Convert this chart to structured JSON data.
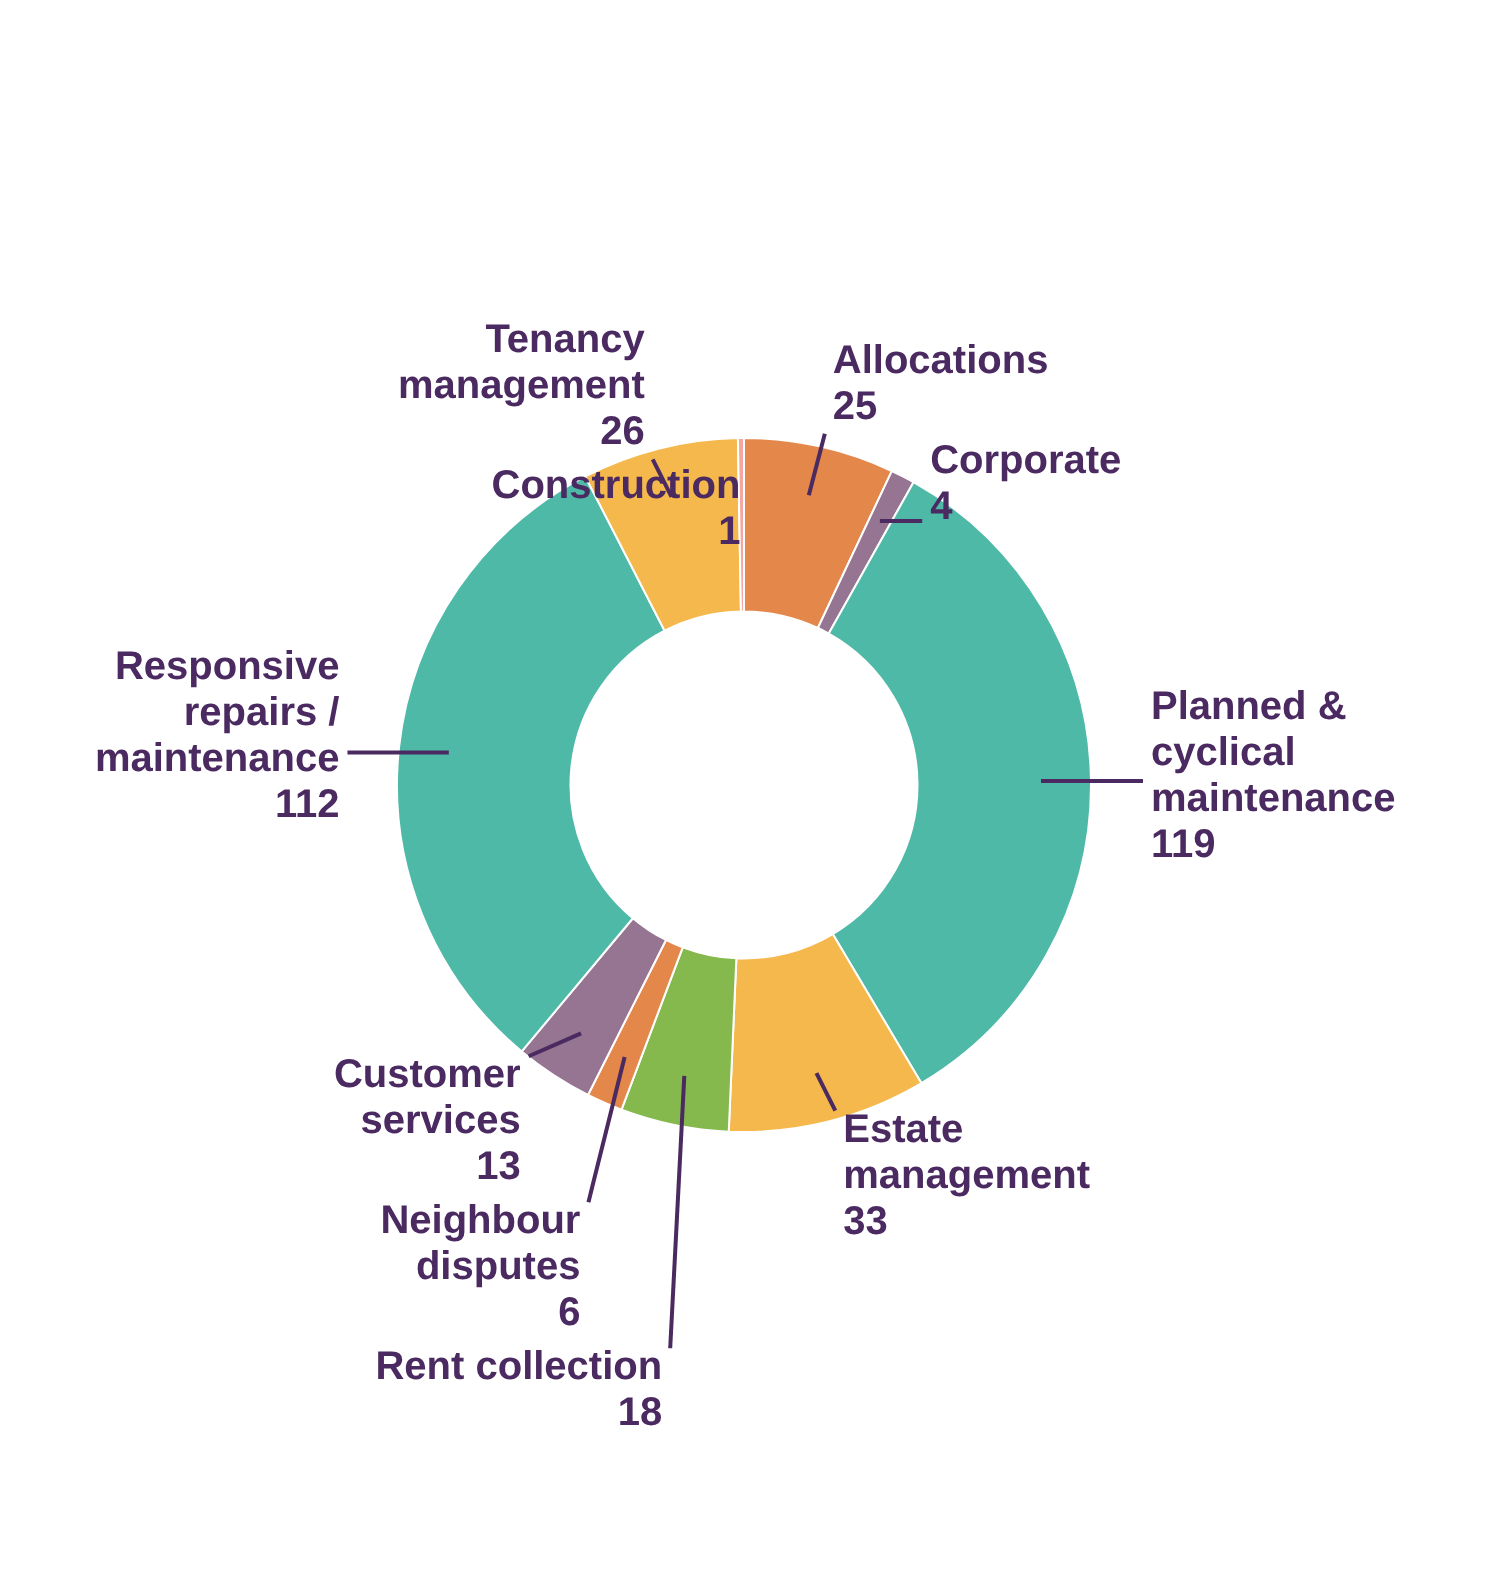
{
  "chart_data": {
    "type": "donut",
    "categories": [
      "Allocations",
      "Corporate",
      "Planned & cyclical maintenance",
      "Estate management",
      "Rent collection",
      "Neighbour disputes",
      "Customer services",
      "Responsive repairs / maintenance",
      "Tenancy management",
      "Construction"
    ],
    "values": [
      25,
      4,
      119,
      33,
      18,
      6,
      13,
      112,
      26,
      1
    ],
    "colors": [
      "#e3874a",
      "#957592",
      "#4fb9a8",
      "#f5b84c",
      "#86b94d",
      "#e3874a",
      "#957592",
      "#4fb9a8",
      "#f5b84c",
      "#f4a6a0"
    ],
    "data_labels": true,
    "legend": false
  }
}
